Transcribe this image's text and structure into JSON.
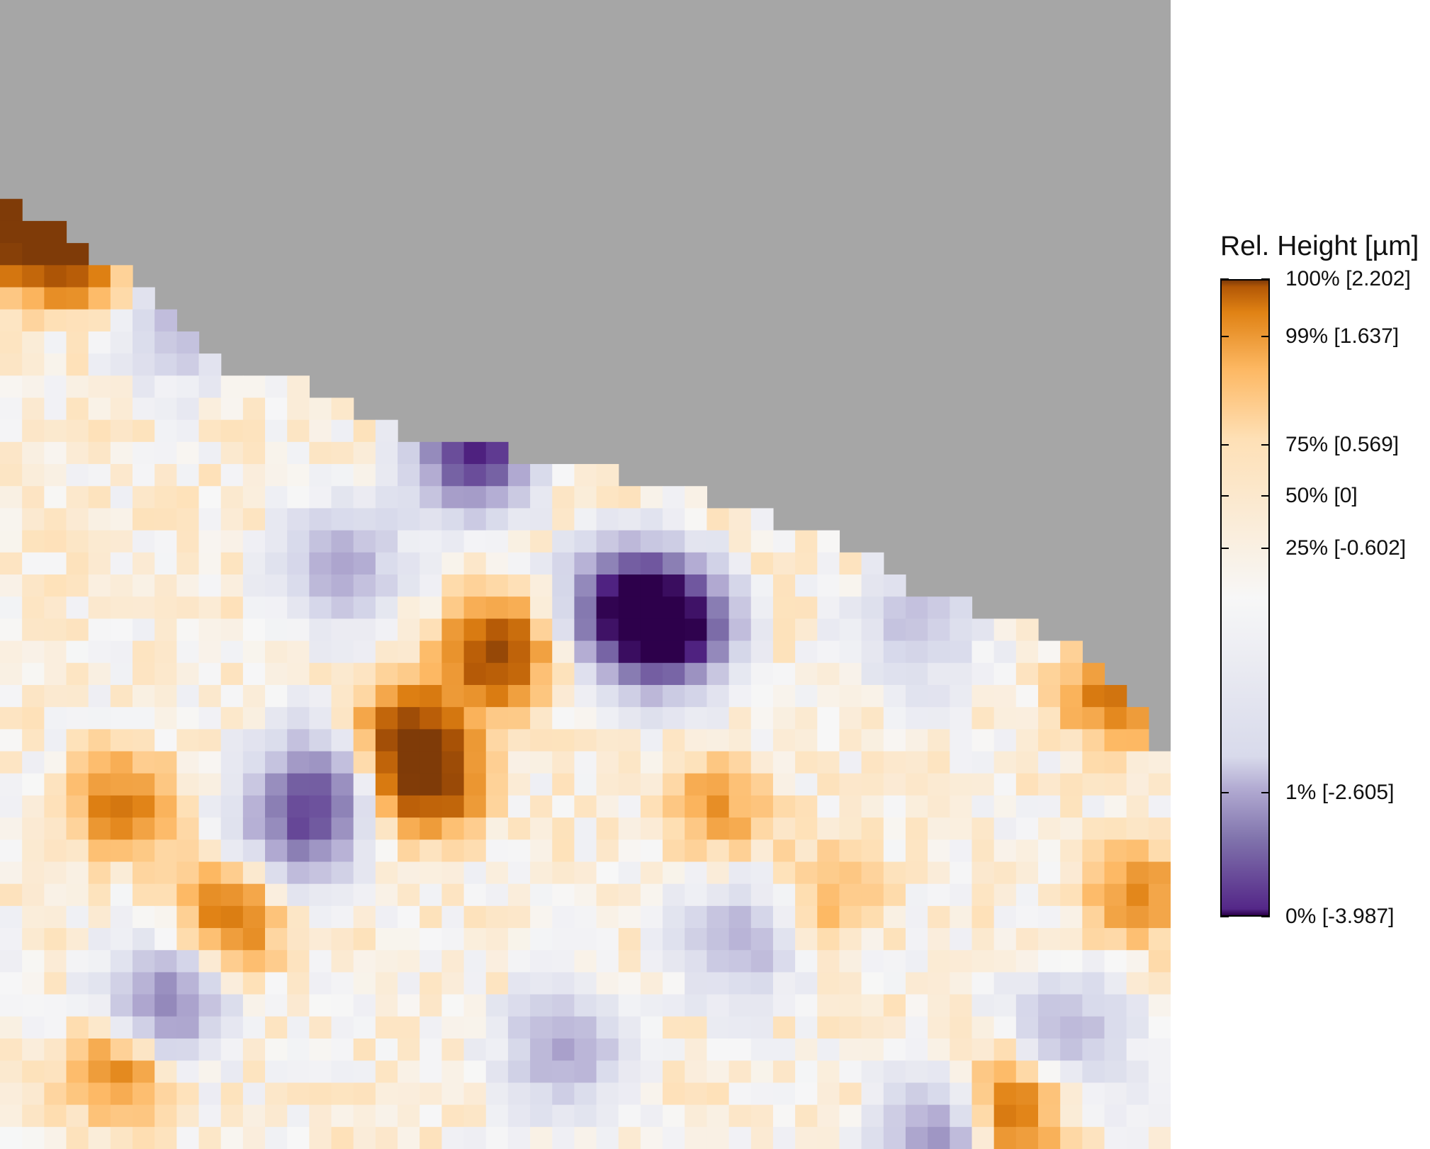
{
  "chart_data": {
    "type": "heatmap",
    "title": "",
    "legend": {
      "title": "Rel. Height [µm]",
      "position": "right",
      "ticks": [
        {
          "pct": 100,
          "label": "100% [2.202]"
        },
        {
          "pct": 99,
          "label": "99% [1.637]"
        },
        {
          "pct": 75,
          "label": "75% [0.569]"
        },
        {
          "pct": 50,
          "label": "50% [0]"
        },
        {
          "pct": 25,
          "label": "25% [-0.602]"
        },
        {
          "pct": 1,
          "label": "1% [-2.605]"
        },
        {
          "pct": 0,
          "label": "0% [-3.987]"
        }
      ],
      "value_min": -3.987,
      "value_max": 2.202
    },
    "colors": {
      "no_data": "#a6a6a6",
      "scale": [
        "#2d004b",
        "#542788",
        "#8073ac",
        "#b2abd2",
        "#d8daeb",
        "#f7f7f7",
        "#fee0b6",
        "#fdb863",
        "#e08214",
        "#b35806",
        "#7f3b08"
      ]
    },
    "grid": {
      "cols": 53,
      "rows": 52
    },
    "valid_start_row_by_col": [
      9,
      9,
      9,
      9,
      10,
      10,
      10,
      11,
      12,
      13,
      14,
      14,
      14,
      14,
      16,
      16,
      17,
      17,
      18,
      18,
      18,
      18,
      18,
      18,
      18,
      18,
      18,
      18,
      18,
      18,
      19,
      19,
      19,
      19,
      19,
      19,
      19,
      19,
      19,
      19,
      19,
      19,
      19,
      19,
      19,
      19,
      19,
      19,
      19,
      19,
      19,
      19,
      19
    ],
    "valid_start_row_end": [
      9,
      10,
      10,
      11,
      12,
      12,
      13,
      14,
      15,
      16,
      17,
      17,
      17,
      17,
      18,
      18,
      19,
      19,
      20,
      20,
      20,
      20,
      20,
      21,
      21,
      21,
      21,
      21,
      22,
      22,
      22,
      22,
      23,
      23,
      23,
      24,
      24,
      24,
      25,
      25,
      26,
      27,
      27,
      27,
      28,
      28,
      28,
      29,
      29,
      30,
      31,
      32,
      34
    ],
    "hotspots": [
      {
        "col": 0,
        "row": 9,
        "value": 2.2
      },
      {
        "col": 2,
        "row": 10,
        "value": 1.55
      },
      {
        "col": 3,
        "row": 11,
        "value": 1.1
      },
      {
        "col": 21,
        "row": 20,
        "value": -3.2
      },
      {
        "col": 28,
        "row": 27,
        "value": -3.987
      },
      {
        "col": 30,
        "row": 28,
        "value": -3.6
      },
      {
        "col": 22,
        "row": 29,
        "value": 1.9
      },
      {
        "col": 18,
        "row": 33,
        "value": 1.8
      },
      {
        "col": 19,
        "row": 35,
        "value": 1.6
      },
      {
        "col": 5,
        "row": 36,
        "value": 1.2
      },
      {
        "col": 14,
        "row": 35,
        "value": -1.6
      },
      {
        "col": 13,
        "row": 37,
        "value": -1.8
      },
      {
        "col": 10,
        "row": 41,
        "value": 1.3
      },
      {
        "col": 7,
        "row": 45,
        "value": -1.9
      },
      {
        "col": 5,
        "row": 48,
        "value": 1.2
      },
      {
        "col": 25,
        "row": 47,
        "value": -1.3
      },
      {
        "col": 33,
        "row": 42,
        "value": -1.2
      },
      {
        "col": 32,
        "row": 36,
        "value": 0.9
      },
      {
        "col": 45,
        "row": 50,
        "value": 1.5
      },
      {
        "col": 42,
        "row": 51,
        "value": -1.8
      },
      {
        "col": 50,
        "row": 31,
        "value": 1.3
      },
      {
        "col": 51,
        "row": 40,
        "value": 1.0
      },
      {
        "col": 48,
        "row": 46,
        "value": -1.0
      },
      {
        "col": 37,
        "row": 40,
        "value": 0.7
      },
      {
        "col": 41,
        "row": 28,
        "value": -0.9
      },
      {
        "col": 15,
        "row": 25,
        "value": -1.3
      },
      {
        "col": 8,
        "row": 14,
        "value": -1.1
      }
    ]
  }
}
